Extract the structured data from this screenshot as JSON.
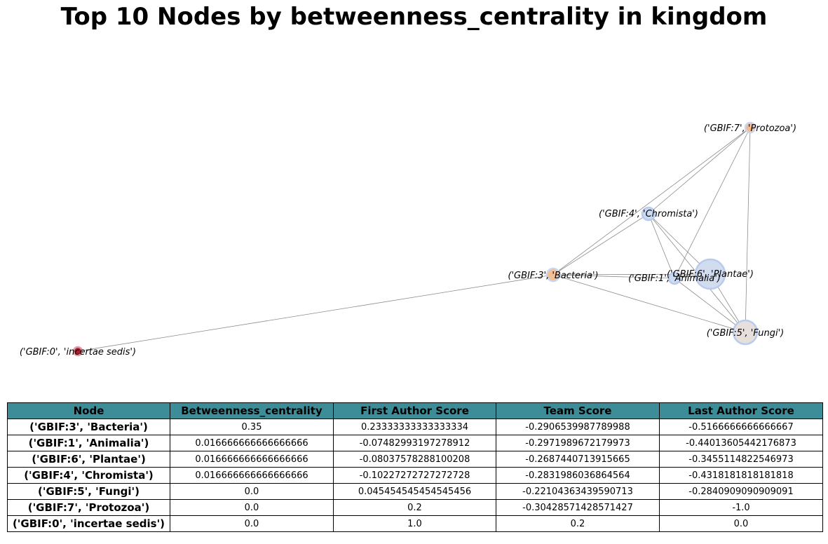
{
  "title": "Top 10 Nodes by betweenness_centrality in kingdom",
  "graph": {
    "nodes": [
      {
        "id": "GBIF:7",
        "label": "('GBIF:7', 'Protozoa')",
        "color": "#f4b98c",
        "ring": "#c8d6f0"
      },
      {
        "id": "GBIF:4",
        "label": "('GBIF:4', 'Chromista')",
        "color": "#ccdaf2",
        "ring": "#b8cbee"
      },
      {
        "id": "GBIF:3",
        "label": "('GBIF:3', 'Bacteria')",
        "color": "#f4bf96",
        "ring": "#c8d6f0"
      },
      {
        "id": "GBIF:1",
        "label": "('GBIF:1', 'Animalia')",
        "color": "#ccdaf2",
        "ring": "#b8cbee"
      },
      {
        "id": "GBIF:6",
        "label": "('GBIF:6', 'Plantae')",
        "color": "#d2dcef",
        "ring": "#b8cbee"
      },
      {
        "id": "GBIF:5",
        "label": "('GBIF:5', 'Fungi')",
        "color": "#e6dfdc",
        "ring": "#b8cbee"
      },
      {
        "id": "GBIF:0",
        "label": "('GBIF:0', 'incertae sedis')",
        "color": "#b01c2e",
        "ring": "#d9a0a8"
      }
    ],
    "edges": [
      [
        "GBIF:7",
        "GBIF:4"
      ],
      [
        "GBIF:7",
        "GBIF:3"
      ],
      [
        "GBIF:7",
        "GBIF:1"
      ],
      [
        "GBIF:7",
        "GBIF:5"
      ],
      [
        "GBIF:4",
        "GBIF:3"
      ],
      [
        "GBIF:4",
        "GBIF:6"
      ],
      [
        "GBIF:4",
        "GBIF:5"
      ],
      [
        "GBIF:4",
        "GBIF:1"
      ],
      [
        "GBIF:3",
        "GBIF:1"
      ],
      [
        "GBIF:3",
        "GBIF:6"
      ],
      [
        "GBIF:3",
        "GBIF:5"
      ],
      [
        "GBIF:3",
        "GBIF:0"
      ],
      [
        "GBIF:1",
        "GBIF:6"
      ],
      [
        "GBIF:1",
        "GBIF:5"
      ],
      [
        "GBIF:6",
        "GBIF:5"
      ]
    ],
    "edge_color": "#8c8c8c"
  },
  "table": {
    "header_color": "#3d8d98",
    "headers": [
      "Node",
      "Betweenness_centrality",
      "First Author Score",
      "Team Score",
      "Last Author Score"
    ],
    "rows": [
      [
        "('GBIF:3', 'Bacteria')",
        "0.35",
        "0.23333333333333334",
        "-0.2906539987789988",
        "-0.5166666666666667"
      ],
      [
        "('GBIF:1', 'Animalia')",
        "0.016666666666666666",
        "-0.07482993197278912",
        "-0.2971989672179973",
        "-0.44013605442176873"
      ],
      [
        "('GBIF:6', 'Plantae')",
        "0.016666666666666666",
        "-0.08037578288100208",
        "-0.2687440713915665",
        "-0.3455114822546973"
      ],
      [
        "('GBIF:4', 'Chromista')",
        "0.016666666666666666",
        "-0.10227272727272728",
        "-0.2831986036864564",
        "-0.4318181818181818"
      ],
      [
        "('GBIF:5', 'Fungi')",
        "0.0",
        "0.045454545454545456",
        "-0.22104363439590713",
        "-0.2840909090909091"
      ],
      [
        "('GBIF:7', 'Protozoa')",
        "0.0",
        "0.2",
        "-0.30428571428571427",
        "-1.0"
      ],
      [
        "('GBIF:0', 'incertae sedis')",
        "0.0",
        "1.0",
        "0.2",
        "0.0"
      ]
    ]
  }
}
